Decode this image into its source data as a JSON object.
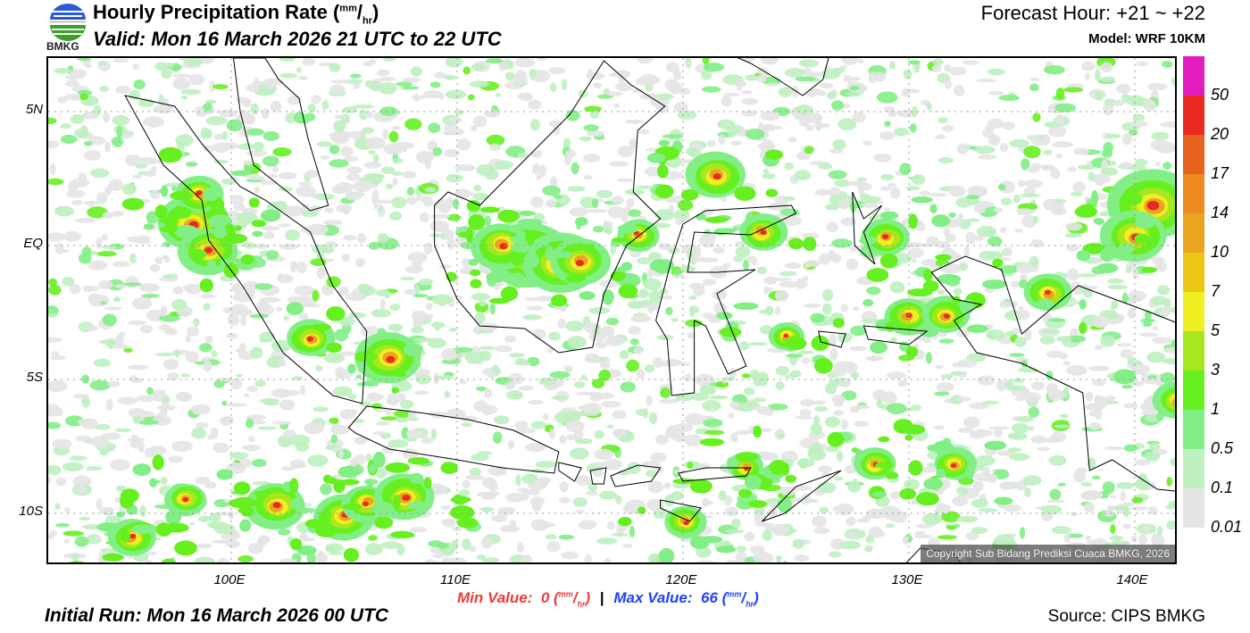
{
  "header": {
    "logo_text": "BMKG",
    "title": "Hourly Precipitation Rate",
    "title_unit_num": "mm",
    "title_unit_den": "hr",
    "valid": "Valid: Mon 16 March 2026 21 UTC to 22 UTC",
    "forecast_hour": "Forecast Hour: +21 ~ +22",
    "model": "Model: WRF 10KM"
  },
  "axes": {
    "lat_labels": [
      "5N",
      "EQ",
      "5S",
      "10S"
    ],
    "lon_labels": [
      "100E",
      "110E",
      "120E",
      "130E",
      "140E"
    ]
  },
  "legend": {
    "labels": [
      "50",
      "20",
      "17",
      "14",
      "10",
      "7",
      "5",
      "3",
      "1",
      "0.5",
      "0.1",
      "0.01"
    ],
    "colors": [
      "#e21cbe",
      "#ea2a20",
      "#e6621f",
      "#ee8a22",
      "#e8a620",
      "#ecc614",
      "#f0ef22",
      "#a8e61e",
      "#66f020",
      "#82ee86",
      "#bff0c0",
      "#e4e4e4"
    ]
  },
  "stats": {
    "min_label": "Min Value:",
    "min_value": "0",
    "max_label": "Max Value:",
    "max_value": "66",
    "unit_num": "mm",
    "unit_den": "hr",
    "separator": "|"
  },
  "footer": {
    "initial_run": "Initial Run: Mon 16 March 2026 00 UTC",
    "source": "Source: CIPS BMKG",
    "copyright": "Copyright Sub Bidang Prediksi Cuaca BMKG, 2026"
  }
}
